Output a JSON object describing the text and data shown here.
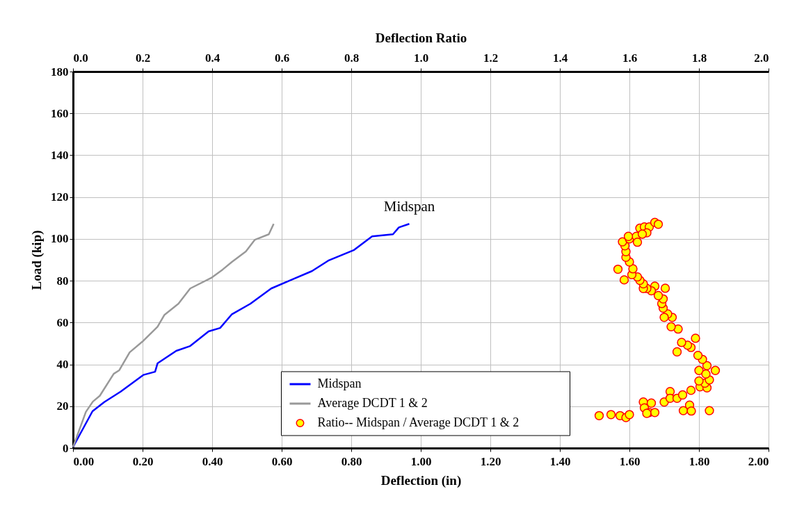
{
  "chart_data": {
    "type": "line",
    "xlabel": "Deflection (in)",
    "ylabel": "Load (kip)",
    "x2label": "Deflection Ratio",
    "xlim": [
      0,
      2
    ],
    "ylim": [
      0,
      180
    ],
    "x2lim": [
      0,
      2
    ],
    "xticks": [
      {
        "value": 0,
        "label": "0.00"
      },
      {
        "value": 0.2,
        "label": "0.20"
      },
      {
        "value": 0.4,
        "label": "0.40"
      },
      {
        "value": 0.6,
        "label": "0.60"
      },
      {
        "value": 0.8,
        "label": "0.80"
      },
      {
        "value": 1,
        "label": "1.00"
      },
      {
        "value": 1.2,
        "label": "1.20"
      },
      {
        "value": 1.4,
        "label": "1.40"
      },
      {
        "value": 1.6,
        "label": "1.60"
      },
      {
        "value": 1.8,
        "label": "1.80"
      },
      {
        "value": 2,
        "label": "2.00"
      }
    ],
    "x2ticks": [
      {
        "value": 0,
        "label": "0.0"
      },
      0.2,
      0.4,
      0.6,
      0.8,
      {
        "value": 1,
        "label": "1.0"
      },
      1.2,
      1.4,
      1.6,
      1.8,
      {
        "value": 2,
        "label": "2.0"
      }
    ],
    "yticks": [
      0,
      20,
      40,
      60,
      80,
      100,
      120,
      140,
      160,
      180
    ],
    "grid": true,
    "legend": "bottom",
    "line_style": "solid",
    "annotations": [
      {
        "text": "Midspan",
        "x": 0.967,
        "y": 107.2
      }
    ],
    "series": [
      {
        "name": "Midspan",
        "type": "line",
        "color": "#0000ff",
        "x": [
          0,
          0.056,
          0.09,
          0.137,
          0.203,
          0.236,
          0.243,
          0.297,
          0.337,
          0.39,
          0.423,
          0.457,
          0.51,
          0.57,
          0.63,
          0.687,
          0.734,
          0.807,
          0.86,
          0.92,
          0.937,
          0.967
        ],
        "values": [
          0.5,
          17.6,
          22,
          27,
          35,
          36.5,
          40.5,
          46.5,
          48.8,
          55.8,
          57.4,
          64,
          69,
          76.3,
          80.6,
          84.6,
          89.6,
          94.6,
          101.2,
          102.2,
          105.5,
          107.2
        ]
      },
      {
        "name": "Average DCDT 1 & 2",
        "type": "line",
        "color": "#999999",
        "x": [
          0,
          0.037,
          0.057,
          0.077,
          0.117,
          0.133,
          0.163,
          0.203,
          0.243,
          0.263,
          0.303,
          0.337,
          0.397,
          0.43,
          0.457,
          0.497,
          0.523,
          0.563,
          0.577
        ],
        "values": [
          0.5,
          17.3,
          22.2,
          25,
          35.5,
          37.2,
          45.8,
          51.4,
          58,
          63.7,
          69,
          76.3,
          81.3,
          85.3,
          89,
          94,
          99.6,
          102.2,
          107.2
        ]
      },
      {
        "name": "Ratio-- Midspan / Average DCDT 1 & 2",
        "type": "scatter",
        "axis": "x2",
        "marker": "circle",
        "color": "#ffff00",
        "x": [
          1.513,
          1.547,
          1.573,
          1.59,
          1.6,
          1.64,
          1.643,
          1.663,
          1.657,
          1.673,
          1.65,
          1.7,
          1.717,
          1.717,
          1.737,
          1.753,
          1.777,
          1.755,
          1.773,
          1.778,
          1.83,
          1.803,
          1.823,
          1.817,
          1.8,
          1.83,
          1.8,
          1.823,
          1.847,
          1.82,
          1.81,
          1.797,
          1.79,
          1.777,
          1.767,
          1.75,
          1.737,
          1.74,
          1.72,
          1.723,
          1.71,
          1.7,
          1.697,
          1.693,
          1.697,
          1.683,
          1.703,
          1.673,
          1.663,
          1.65,
          1.64,
          1.64,
          1.63,
          1.623,
          1.607,
          1.61,
          1.567,
          1.585,
          1.6,
          1.59,
          1.59,
          1.587,
          1.58,
          1.6,
          1.62,
          1.623,
          1.597,
          1.63,
          1.643,
          1.657,
          1.673,
          1.683,
          1.65,
          1.637
        ],
        "values": [
          15.5,
          16,
          15.5,
          14.6,
          16,
          22,
          19.2,
          21.5,
          17,
          17,
          16.6,
          22,
          27,
          23.8,
          23.8,
          25.4,
          27.6,
          17.9,
          20.5,
          17.7,
          17.9,
          29.3,
          28.8,
          31,
          32.1,
          32.6,
          37.1,
          39.4,
          37.1,
          35.4,
          42.4,
          44.3,
          52.5,
          48.1,
          49.2,
          50.5,
          46,
          56.9,
          58,
          62.5,
          64.1,
          62.5,
          66.9,
          69.1,
          71.3,
          72.9,
          76.4,
          77.4,
          75.2,
          76.3,
          76.3,
          78.5,
          80.2,
          81.8,
          82.9,
          85.7,
          85.5,
          80.4,
          89,
          91.2,
          93.9,
          96.7,
          98.6,
          100,
          101.2,
          98.4,
          101.2,
          105.1,
          105.7,
          105.7,
          107.9,
          107,
          102.9,
          102.3
        ]
      }
    ]
  }
}
